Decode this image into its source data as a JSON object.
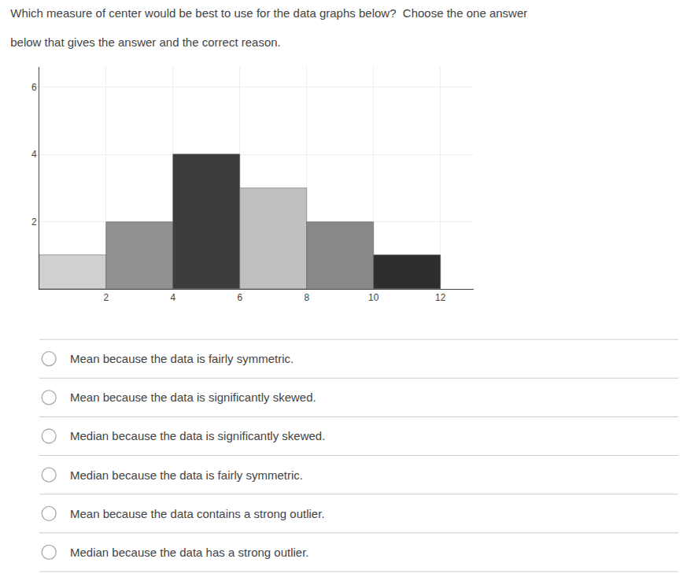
{
  "chart_data": {
    "type": "histogram",
    "title": "Which measure of center would be best to use for the data graphs below?  Choose the one answer",
    "subtitle": "below that gives the answer and the correct reason.",
    "bins": [
      0,
      2,
      4,
      6,
      8,
      10,
      12
    ],
    "values": [
      1,
      2,
      4,
      3,
      2,
      1
    ],
    "colors": [
      "#d0d0d0",
      "#909090",
      "#3c3c3c",
      "#c0c0c0",
      "#888888",
      "#2e2e2e"
    ],
    "xlim": [
      0,
      13
    ],
    "ylim": [
      0,
      6.6
    ],
    "xticks": [
      2,
      4,
      6,
      8,
      10,
      12
    ],
    "yticks": [
      2,
      4,
      6
    ],
    "grid": true,
    "annotations": [
      "Mean because the data is fairly symmetric.",
      "Mean because the data is significantly skewed.",
      "Median because the data is significantly skewed.",
      "Median because the data is fairly symmetric.",
      "Mean because the data contains a strong outlier.",
      "Median because the data has a strong outlier."
    ]
  }
}
